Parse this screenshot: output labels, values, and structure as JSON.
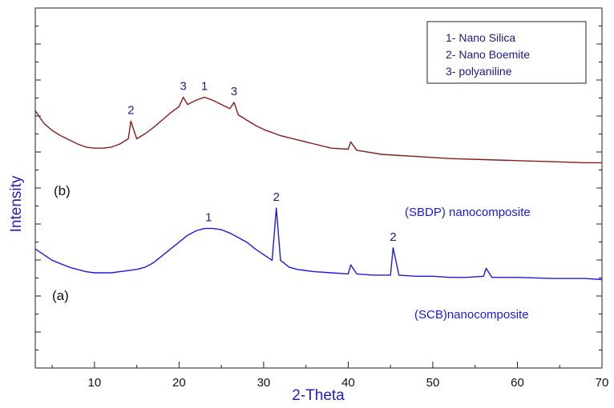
{
  "chart_data": {
    "type": "line",
    "xlabel": "2-Theta",
    "ylabel": "Intensity",
    "xlim": [
      3,
      70
    ],
    "x_ticks": [
      "10",
      "20",
      "30",
      "40",
      "50",
      "60",
      "70"
    ],
    "y_ticks_labeled": false,
    "grid": false,
    "legend": {
      "placement": "top-right",
      "entries": [
        "1- Nano Silica",
        "2- Nano Boemite",
        "3- polyaniline"
      ]
    },
    "series": [
      {
        "name": "(SBDP) nanocomposite",
        "tag": "(b)",
        "color": "#8b1a1a",
        "x": [
          3,
          4,
          5,
          6,
          7,
          8,
          9,
          10,
          11,
          12,
          13,
          14,
          14.3,
          15,
          16,
          17,
          18,
          19,
          20,
          20.5,
          21,
          22,
          23,
          24,
          25,
          26,
          26.5,
          27,
          28,
          29,
          30,
          32,
          34,
          36,
          38,
          40,
          40.3,
          41,
          44,
          48,
          52,
          56,
          60,
          64,
          68,
          70
        ],
        "y": [
          72,
          60,
          53,
          48,
          44,
          40,
          37,
          36,
          36,
          37,
          40,
          45,
          62,
          45,
          50,
          56,
          63,
          70,
          76,
          85,
          78,
          82,
          85,
          82,
          78,
          74,
          80,
          68,
          63,
          58,
          54,
          48,
          44,
          40,
          36,
          35,
          42,
          34,
          30,
          28,
          26,
          25,
          24,
          23,
          22,
          22
        ]
      },
      {
        "name": "(SCB)nanocomposite",
        "tag": "(a)",
        "color": "#1a1ae6",
        "x": [
          3,
          4,
          5,
          6,
          7,
          8,
          9,
          10,
          11,
          12,
          13,
          14,
          15,
          16,
          17,
          18,
          19,
          20,
          21,
          22,
          23,
          24,
          25,
          26,
          27,
          28,
          29,
          30,
          31,
          31.5,
          32,
          33,
          34,
          36,
          38,
          40,
          40.3,
          41,
          43,
          45,
          45.3,
          46,
          48,
          50,
          52,
          54,
          56,
          56.3,
          57,
          60,
          64,
          68,
          70
        ],
        "y": [
          40,
          35,
          30,
          27,
          24,
          22,
          20,
          19,
          19,
          19,
          20,
          21,
          22,
          24,
          28,
          34,
          40,
          46,
          52,
          56,
          58,
          58,
          57,
          54,
          50,
          46,
          40,
          35,
          30,
          76,
          30,
          24,
          22,
          20,
          19,
          18,
          26,
          18,
          17,
          17,
          41,
          17,
          16,
          16,
          15,
          15,
          16,
          23,
          15,
          15,
          14,
          14,
          13
        ]
      }
    ],
    "annotations": [
      {
        "text": "1",
        "series": "(SCB)nanocomposite",
        "x": 23.5
      },
      {
        "text": "2",
        "series": "(SCB)nanocomposite",
        "x": 31.5
      },
      {
        "text": "2",
        "series": "(SCB)nanocomposite",
        "x": 45.3
      },
      {
        "text": "2",
        "series": "(SBDP) nanocomposite",
        "x": 14.3
      },
      {
        "text": "3",
        "series": "(SBDP) nanocomposite",
        "x": 20.5
      },
      {
        "text": "1",
        "series": "(SBDP) nanocomposite",
        "x": 23
      },
      {
        "text": "3",
        "series": "(SBDP) nanocomposite",
        "x": 26.5
      }
    ]
  }
}
